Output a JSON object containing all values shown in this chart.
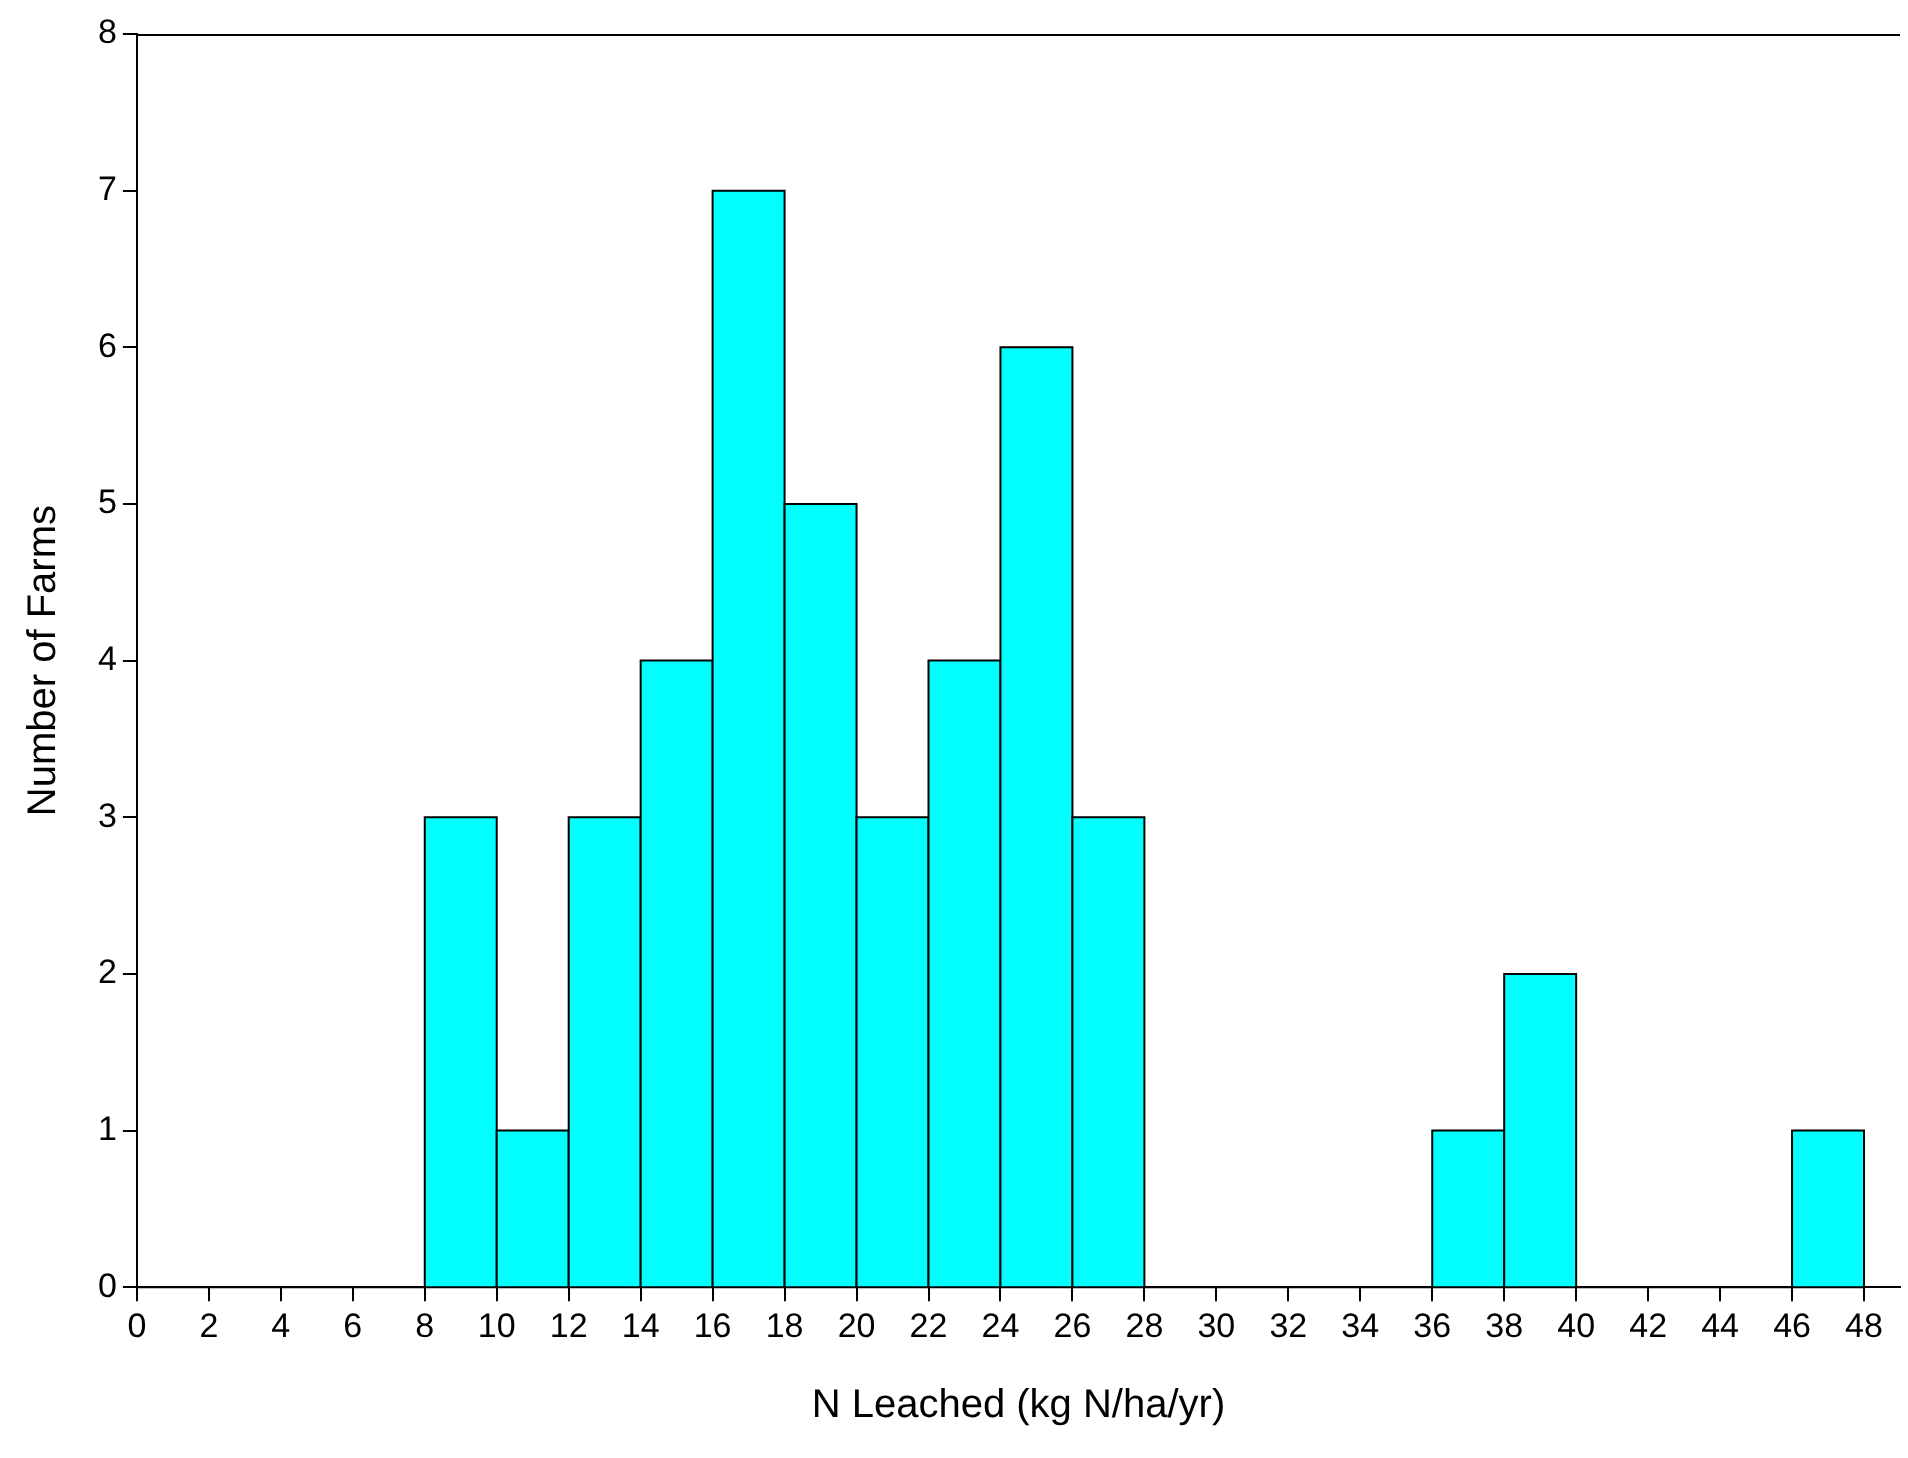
{
  "chart_data": {
    "type": "histogram",
    "xlabel": "N Leached (kg N/ha/yr)",
    "ylabel": "Number of Farms",
    "bins": [
      0,
      2,
      4,
      6,
      8,
      10,
      12,
      14,
      16,
      18,
      20,
      22,
      24,
      26,
      28,
      30,
      32,
      34,
      36,
      38,
      40,
      42,
      44,
      46,
      48
    ],
    "values": [
      0,
      0,
      0,
      0,
      3,
      1,
      3,
      4,
      7,
      5,
      3,
      4,
      6,
      3,
      0,
      0,
      0,
      0,
      1,
      2,
      0,
      0,
      0,
      1
    ],
    "color": "#00ffff",
    "xlim": [
      0,
      49
    ],
    "xticks": [
      0,
      2,
      4,
      6,
      8,
      10,
      12,
      14,
      16,
      18,
      20,
      22,
      24,
      26,
      28,
      30,
      32,
      34,
      36,
      38,
      40,
      42,
      44,
      46,
      48
    ],
    "ylim": [
      0,
      8
    ],
    "yticks": [
      0,
      1,
      2,
      3,
      4,
      5,
      6,
      7,
      8
    ],
    "grid": false,
    "legend": false
  }
}
